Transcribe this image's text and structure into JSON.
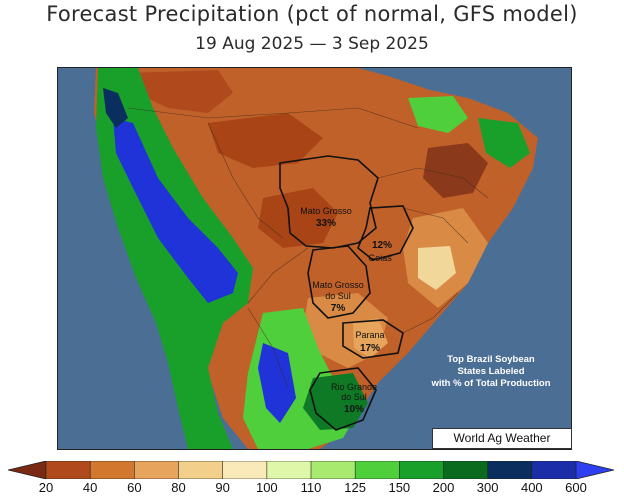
{
  "title": "Forecast Precipitation (pct of normal, GFS model)",
  "subtitle": "19 Aug 2025 — 3 Sep 2025",
  "states": [
    {
      "name": "Mato Grosso",
      "pct": "33%"
    },
    {
      "name": "Goias",
      "pct": "12%"
    },
    {
      "name": "Mato Grosso do Sul",
      "name_lines": [
        "Mato Grosso",
        "do Sul"
      ],
      "pct": "7%"
    },
    {
      "name": "Parana",
      "pct": "17%"
    },
    {
      "name": "Rio Grande do Sul",
      "name_lines": [
        "Rio Grande",
        "do Sul"
      ],
      "pct": "10%"
    }
  ],
  "note_lines": [
    "Top Brazil Soybean",
    "States Labeled",
    "with % of Total Production"
  ],
  "credit": "World Ag Weather",
  "legend": {
    "ticks": [
      "20",
      "40",
      "60",
      "80",
      "90",
      "100",
      "110",
      "125",
      "150",
      "200",
      "300",
      "400",
      "600"
    ],
    "colors": [
      "#7a2a12",
      "#b04a1c",
      "#d2772e",
      "#e7a45c",
      "#f3cf8c",
      "#fbeab9",
      "#dff7a8",
      "#a8ea70",
      "#4fcf3c",
      "#18a02a",
      "#0a6b1f",
      "#0a2e5e",
      "#1b2ea8",
      "#2e3ff0"
    ]
  },
  "colors": {
    "ocean": "#4b6e94",
    "very_dry": "#8a3a1a",
    "dry": "#c0612a",
    "moderate_dry": "#d98a45",
    "near_normal": "#f1d79a",
    "wet": "#4fcf3c",
    "very_wet": "#0f7a25",
    "extreme_wet": "#1f33d8"
  }
}
